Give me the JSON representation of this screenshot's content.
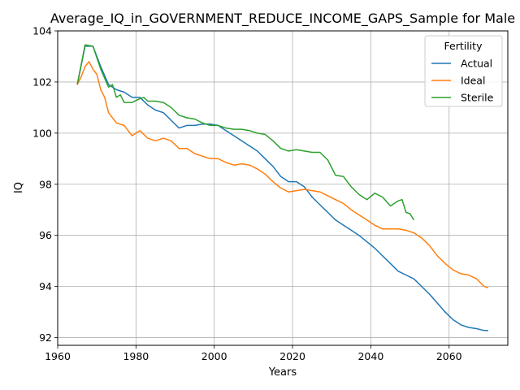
{
  "chart_data": {
    "type": "line",
    "title": "Average_IQ_in_GOVERNMENT_REDUCE_INCOME_GAPS_Sample for Male",
    "xlabel": "Years",
    "ylabel": "IQ",
    "xlim": [
      1960,
      2075
    ],
    "ylim": [
      91.7,
      104
    ],
    "x_ticks": [
      1960,
      1980,
      2000,
      2020,
      2040,
      2060
    ],
    "y_ticks": [
      92,
      94,
      96,
      98,
      100,
      102,
      104
    ],
    "grid": true,
    "legend": {
      "title": "Fertility",
      "placement": "top-right"
    },
    "series": [
      {
        "name": "Actual",
        "color": "#1f77b4",
        "x": [
          1965,
          1967,
          1969,
          1971,
          1973,
          1975,
          1977,
          1979,
          1981,
          1983,
          1985,
          1987,
          1989,
          1991,
          1993,
          1995,
          1997,
          1999,
          2001,
          2003,
          2005,
          2007,
          2009,
          2011,
          2013,
          2015,
          2017,
          2019,
          2021,
          2023,
          2025,
          2027,
          2029,
          2031,
          2033,
          2035,
          2037,
          2039,
          2041,
          2043,
          2045,
          2047,
          2049,
          2051,
          2053,
          2055,
          2057,
          2059,
          2061,
          2063,
          2065,
          2067,
          2069,
          2070
        ],
        "values": [
          101.9,
          103.4,
          103.4,
          102.6,
          101.9,
          101.7,
          101.6,
          101.4,
          101.4,
          101.1,
          100.9,
          100.8,
          100.5,
          100.2,
          100.3,
          100.3,
          100.35,
          100.35,
          100.3,
          100.1,
          99.9,
          99.7,
          99.5,
          99.3,
          99.0,
          98.7,
          98.3,
          98.1,
          98.1,
          97.9,
          97.5,
          97.2,
          96.9,
          96.6,
          96.4,
          96.2,
          96.0,
          95.75,
          95.5,
          95.2,
          94.9,
          94.6,
          94.45,
          94.3,
          94.0,
          93.7,
          93.35,
          93.0,
          92.7,
          92.5,
          92.4,
          92.35,
          92.28,
          92.28
        ]
      },
      {
        "name": "Ideal",
        "color": "#ff7f0e",
        "x": [
          1965,
          1966,
          1967,
          1968,
          1969,
          1970,
          1971,
          1972,
          1973,
          1975,
          1977,
          1979,
          1981,
          1983,
          1985,
          1987,
          1989,
          1991,
          1993,
          1995,
          1997,
          1999,
          2001,
          2003,
          2005,
          2007,
          2009,
          2011,
          2013,
          2015,
          2017,
          2019,
          2021,
          2023,
          2025,
          2027,
          2029,
          2031,
          2033,
          2035,
          2037,
          2039,
          2041,
          2043,
          2045,
          2047,
          2049,
          2051,
          2053,
          2055,
          2057,
          2059,
          2061,
          2063,
          2065,
          2067,
          2069,
          2070
        ],
        "values": [
          101.9,
          102.2,
          102.6,
          102.8,
          102.5,
          102.3,
          101.7,
          101.4,
          100.8,
          100.4,
          100.3,
          99.9,
          100.1,
          99.8,
          99.7,
          99.8,
          99.7,
          99.4,
          99.4,
          99.2,
          99.1,
          99.0,
          99.0,
          98.85,
          98.75,
          98.8,
          98.75,
          98.6,
          98.4,
          98.1,
          97.85,
          97.7,
          97.75,
          97.8,
          97.75,
          97.7,
          97.55,
          97.4,
          97.25,
          97.0,
          96.8,
          96.6,
          96.4,
          96.25,
          96.25,
          96.25,
          96.2,
          96.1,
          95.9,
          95.6,
          95.2,
          94.9,
          94.65,
          94.5,
          94.45,
          94.3,
          94.0,
          93.95
        ]
      },
      {
        "name": "Sterile",
        "color": "#2ca02c",
        "x": [
          1965,
          1967,
          1969,
          1971,
          1973,
          1974,
          1975,
          1976,
          1977,
          1979,
          1981,
          1982,
          1983,
          1985,
          1987,
          1989,
          1991,
          1993,
          1995,
          1997,
          1999,
          2001,
          2003,
          2005,
          2007,
          2009,
          2011,
          2013,
          2015,
          2017,
          2019,
          2021,
          2023,
          2025,
          2027,
          2029,
          2031,
          2033,
          2035,
          2037,
          2039,
          2041,
          2043,
          2045,
          2047,
          2048,
          2049,
          2050,
          2051
        ],
        "values": [
          101.9,
          103.45,
          103.4,
          102.5,
          101.8,
          101.9,
          101.4,
          101.5,
          101.2,
          101.2,
          101.35,
          101.4,
          101.25,
          101.25,
          101.2,
          101.0,
          100.7,
          100.6,
          100.55,
          100.4,
          100.3,
          100.3,
          100.2,
          100.15,
          100.15,
          100.1,
          100.0,
          99.95,
          99.7,
          99.4,
          99.3,
          99.35,
          99.3,
          99.25,
          99.25,
          98.95,
          98.35,
          98.3,
          97.9,
          97.6,
          97.4,
          97.65,
          97.5,
          97.15,
          97.35,
          97.4,
          96.9,
          96.85,
          96.6
        ]
      }
    ]
  }
}
